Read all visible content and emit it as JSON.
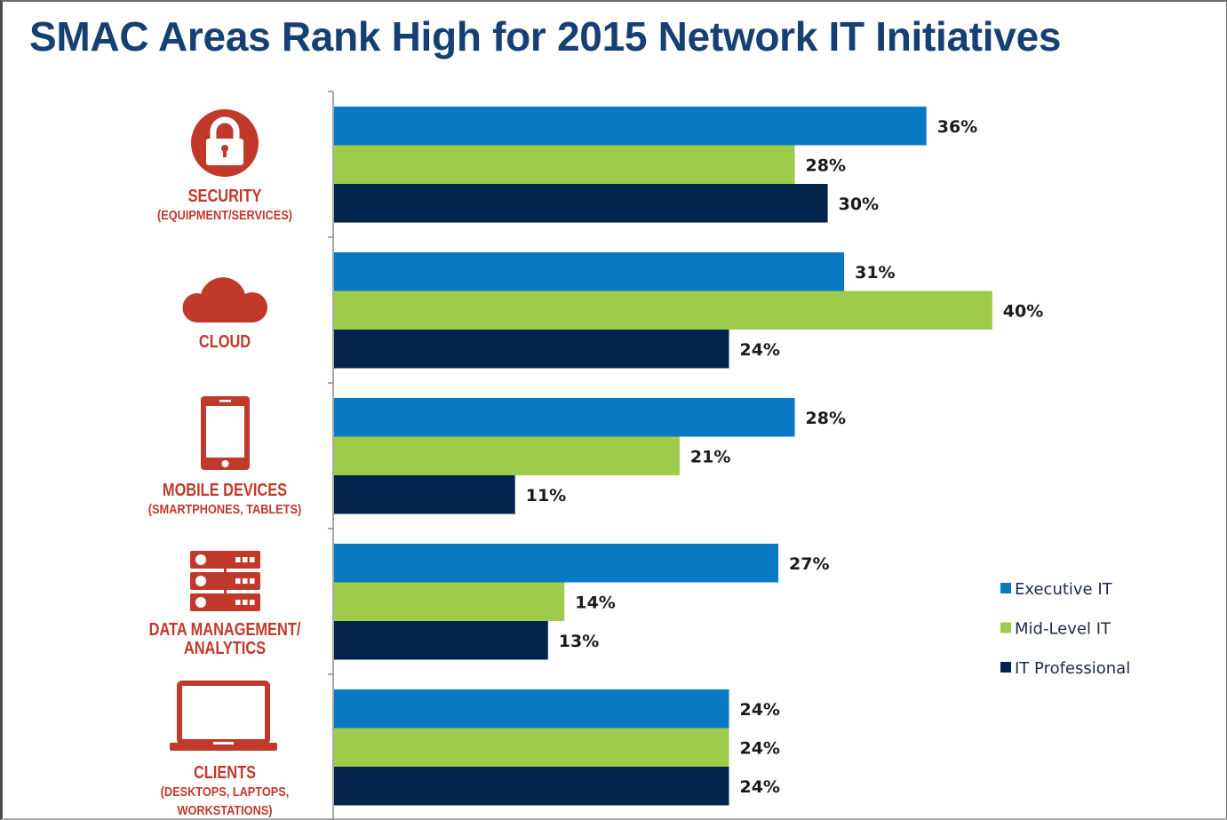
{
  "chart_data": {
    "type": "bar",
    "orientation": "horizontal",
    "title": "SMAC Areas Rank High for 2015 Network IT Initiatives",
    "xlabel": "",
    "ylabel": "",
    "xlim": [
      0,
      40
    ],
    "grid": false,
    "legend_position": "right",
    "value_format": "{v}%",
    "categories": [
      {
        "name": "SECURITY",
        "sub": [
          "(EQUIPMENT/SERVICES)"
        ],
        "icon": "lock-icon"
      },
      {
        "name": "CLOUD",
        "sub": [],
        "icon": "cloud-icon"
      },
      {
        "name": "MOBILE DEVICES",
        "sub": [
          "(SMARTPHONES, TABLETS)"
        ],
        "icon": "tablet-icon"
      },
      {
        "name": "DATA MANAGEMENT/",
        "sub": [
          "ANALYTICS"
        ],
        "icon": "server-icon",
        "sub_bold": true
      },
      {
        "name": "CLIENTS",
        "sub": [
          "(DESKTOPS, LAPTOPS,",
          "WORKSTATIONS)"
        ],
        "icon": "laptop-icon"
      }
    ],
    "series": [
      {
        "name": "Executive IT",
        "color": "#0a79c3",
        "values": [
          36,
          31,
          28,
          27,
          24
        ]
      },
      {
        "name": "Mid-Level IT",
        "color": "#9fcb4a",
        "values": [
          28,
          40,
          21,
          14,
          24
        ]
      },
      {
        "name": "IT Professional",
        "color": "#02234a",
        "values": [
          30,
          24,
          11,
          13,
          24
        ]
      }
    ]
  },
  "colors": {
    "title": "#163f73",
    "category_label": "#c0392b",
    "icon": "#c0392b",
    "axis": "#8a8a8a"
  }
}
